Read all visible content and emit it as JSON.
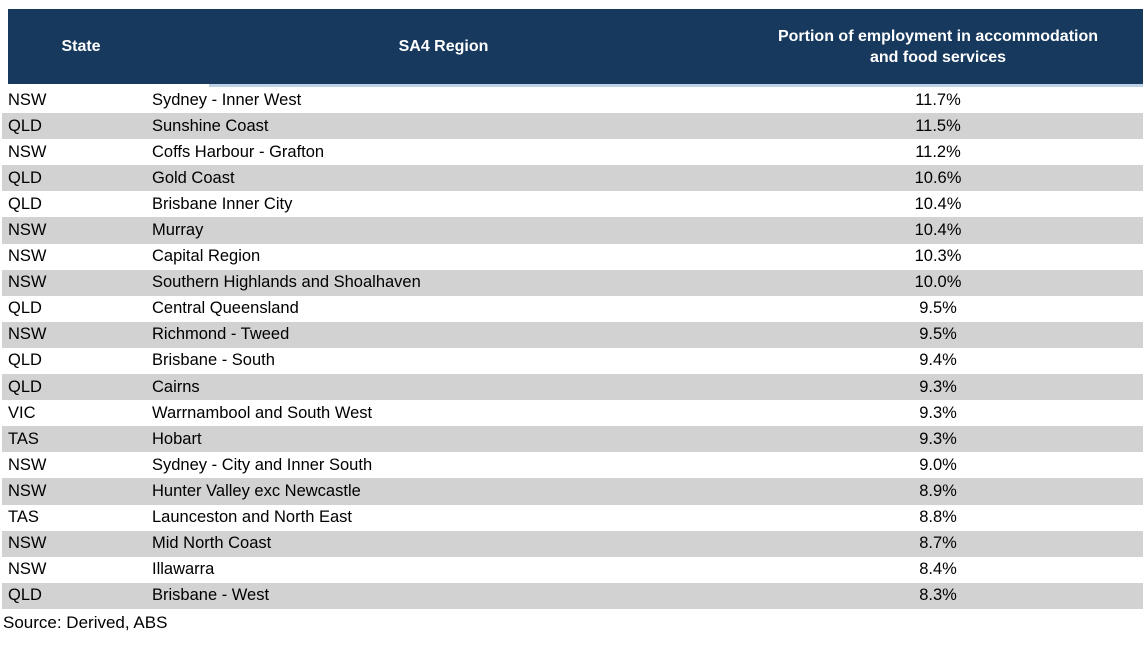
{
  "colors": {
    "header_bg": "#17395E",
    "header_text": "#FFFFFF",
    "row_alt_bg": "#D2D2D2",
    "row_bg": "#FFFFFF",
    "accent_strip": "#BDD2E7",
    "text": "#000000"
  },
  "table": {
    "header": {
      "state_label": "State",
      "region_label": "SA4 Region",
      "portion_label_line1": "Portion of employment in accommodation",
      "portion_label_line2": "and food services"
    },
    "rows": [
      {
        "state": "NSW",
        "region": "Sydney - Inner West",
        "value": "11.7%"
      },
      {
        "state": "QLD",
        "region": "Sunshine Coast",
        "value": "11.5%"
      },
      {
        "state": "NSW",
        "region": "Coffs Harbour - Grafton",
        "value": "11.2%"
      },
      {
        "state": "QLD",
        "region": "Gold Coast",
        "value": "10.6%"
      },
      {
        "state": "QLD",
        "region": "Brisbane Inner City",
        "value": "10.4%"
      },
      {
        "state": "NSW",
        "region": "Murray",
        "value": "10.4%"
      },
      {
        "state": "NSW",
        "region": "Capital Region",
        "value": "10.3%"
      },
      {
        "state": "NSW",
        "region": "Southern Highlands and Shoalhaven",
        "value": "10.0%"
      },
      {
        "state": "QLD",
        "region": "Central Queensland",
        "value": "9.5%"
      },
      {
        "state": "NSW",
        "region": "Richmond - Tweed",
        "value": "9.5%"
      },
      {
        "state": "QLD",
        "region": "Brisbane - South",
        "value": "9.4%"
      },
      {
        "state": "QLD",
        "region": "Cairns",
        "value": "9.3%"
      },
      {
        "state": "VIC",
        "region": "Warrnambool and South West",
        "value": "9.3%"
      },
      {
        "state": "TAS",
        "region": "Hobart",
        "value": "9.3%"
      },
      {
        "state": "NSW",
        "region": "Sydney - City and Inner South",
        "value": "9.0%"
      },
      {
        "state": "NSW",
        "region": "Hunter Valley exc Newcastle",
        "value": "8.9%"
      },
      {
        "state": "TAS",
        "region": "Launceston and North East",
        "value": "8.8%"
      },
      {
        "state": "NSW",
        "region": "Mid North Coast",
        "value": "8.7%"
      },
      {
        "state": "NSW",
        "region": "Illawarra",
        "value": "8.4%"
      },
      {
        "state": "QLD",
        "region": "Brisbane - West",
        "value": "8.3%"
      }
    ],
    "source": "Source: Derived, ABS"
  },
  "chart_data": {
    "type": "table",
    "title": "Portion of employment in accommodation and food services by SA4 region",
    "columns": [
      "State",
      "SA4 Region",
      "Portion of employment in accommodation and food services"
    ],
    "categories": [
      "Sydney - Inner West",
      "Sunshine Coast",
      "Coffs Harbour - Grafton",
      "Gold Coast",
      "Brisbane Inner City",
      "Murray",
      "Capital Region",
      "Southern Highlands and Shoalhaven",
      "Central Queensland",
      "Richmond - Tweed",
      "Brisbane - South",
      "Cairns",
      "Warrnambool and South West",
      "Hobart",
      "Sydney - City and Inner South",
      "Hunter Valley exc Newcastle",
      "Launceston and North East",
      "Mid North Coast",
      "Illawarra",
      "Brisbane - West"
    ],
    "states": [
      "NSW",
      "QLD",
      "NSW",
      "QLD",
      "QLD",
      "NSW",
      "NSW",
      "NSW",
      "QLD",
      "NSW",
      "QLD",
      "QLD",
      "VIC",
      "TAS",
      "NSW",
      "NSW",
      "TAS",
      "NSW",
      "NSW",
      "QLD"
    ],
    "values_percent": [
      11.7,
      11.5,
      11.2,
      10.6,
      10.4,
      10.4,
      10.3,
      10.0,
      9.5,
      9.5,
      9.4,
      9.3,
      9.3,
      9.3,
      9.0,
      8.9,
      8.8,
      8.7,
      8.4,
      8.3
    ],
    "source": "Source: Derived, ABS"
  }
}
